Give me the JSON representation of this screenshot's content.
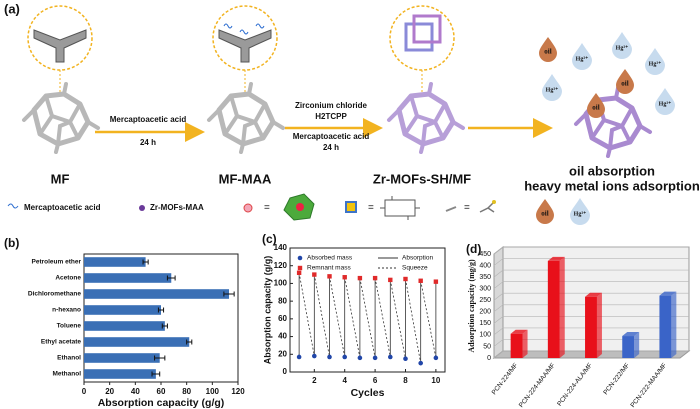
{
  "schematic": {
    "panel_label": "(a)",
    "stages": [
      "MF",
      "MF-MAA",
      "Zr-MOFs-SH/MF"
    ],
    "step1": [
      "Mercaptoacetic acid",
      "24 h"
    ],
    "step2": [
      "Zirconium chloride",
      "H2TCPP",
      "Mercaptoacetic acid",
      "24 h"
    ],
    "outcome": [
      "oil absorption",
      "heavy metal ions adsorption"
    ],
    "oil": "oil",
    "hg": "Hg²⁺"
  },
  "legend_row": {
    "items": [
      "Mercaptoacetic acid",
      "Zr-MOFs-MAA"
    ],
    "equals": "="
  },
  "chart_data": [
    {
      "type": "hbar",
      "panel_label": "(b)",
      "xlabel": "Absorption capacity (g/g)",
      "categories": [
        "Petroleum ether",
        "Acetone",
        "Dichloromethane",
        "n-hexano",
        "Toluene",
        "Ethyl acetate",
        "Ethanol",
        "Methanol"
      ],
      "values": [
        48,
        68,
        113,
        60,
        63,
        82,
        59,
        56
      ],
      "errors": [
        2,
        3,
        4,
        2,
        2,
        2,
        4,
        3
      ],
      "color": "#3a6fb5",
      "xlim": [
        0,
        120
      ],
      "xticks": [
        0,
        20,
        40,
        60,
        80,
        100,
        120
      ]
    },
    {
      "type": "line",
      "panel_label": "(c)",
      "xlabel": "Cycles",
      "ylabel": "Absorption capacity (g/g)",
      "x": [
        1,
        2,
        3,
        4,
        5,
        6,
        7,
        8,
        9,
        10
      ],
      "series": [
        {
          "name": "Absorbed mass",
          "color": "#2146a8",
          "values": [
            17,
            18,
            17,
            17,
            16,
            16,
            17,
            15,
            10,
            16
          ]
        },
        {
          "name": "Remnant mass",
          "color": "#e02a2a",
          "values": [
            112,
            110,
            108,
            107,
            106,
            106,
            104,
            105,
            103,
            102
          ]
        }
      ],
      "connector_labels": {
        "solid": "Absorption",
        "dashed": "Squeeze"
      },
      "xlim": [
        0.4,
        10.6
      ],
      "xticks": [
        2,
        4,
        6,
        8,
        10
      ],
      "ylim": [
        0,
        140
      ],
      "yticks": [
        0,
        20,
        40,
        60,
        80,
        100,
        120,
        140
      ]
    },
    {
      "type": "bar3d",
      "panel_label": "(d)",
      "ylabel": "Adsorption capacity (mg/g)",
      "categories": [
        "PCN-224/MF",
        "PCN-224-MAA/MF",
        "PCN-224-ALA/MF",
        "PCN-222/MF",
        "PCN-222-MAA/MF"
      ],
      "values": [
        105,
        420,
        265,
        95,
        270
      ],
      "colors": [
        "#e8101a",
        "#e8101a",
        "#e8101a",
        "#3a64c8",
        "#3a64c8"
      ],
      "ylim": [
        0,
        450
      ],
      "yticks": [
        0,
        50,
        100,
        150,
        200,
        250,
        300,
        350,
        400,
        450
      ]
    }
  ]
}
